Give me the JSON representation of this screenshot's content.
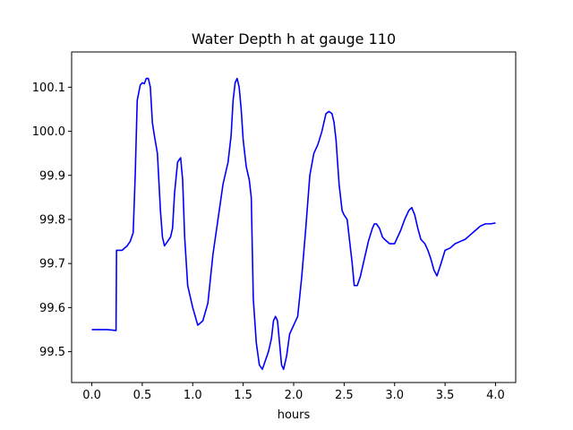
{
  "chart_data": {
    "type": "line",
    "title": "Water Depth h at gauge 110",
    "xlabel": "hours",
    "ylabel": "",
    "xlim": [
      -0.2,
      4.2
    ],
    "ylim": [
      99.43,
      100.18
    ],
    "xticks": [
      0.0,
      0.5,
      1.0,
      1.5,
      2.0,
      2.5,
      3.0,
      3.5,
      4.0
    ],
    "xtick_labels": [
      "0.0",
      "0.5",
      "1.0",
      "1.5",
      "2.0",
      "2.5",
      "3.0",
      "3.5",
      "4.0"
    ],
    "yticks": [
      99.5,
      99.6,
      99.7,
      99.8,
      99.9,
      100.0,
      100.1
    ],
    "ytick_labels": [
      "99.5",
      "99.6",
      "99.7",
      "99.8",
      "99.9",
      "100.0",
      "100.1"
    ],
    "grid": false,
    "series": [
      {
        "color": "#0000ff",
        "x": [
          0.0,
          0.05,
          0.1,
          0.15,
          0.2,
          0.24,
          0.245,
          0.3,
          0.35,
          0.38,
          0.41,
          0.43,
          0.45,
          0.48,
          0.5,
          0.52,
          0.54,
          0.56,
          0.58,
          0.6,
          0.62,
          0.65,
          0.68,
          0.7,
          0.72,
          0.75,
          0.78,
          0.8,
          0.82,
          0.85,
          0.88,
          0.9,
          0.92,
          0.95,
          0.98,
          1.0,
          1.05,
          1.1,
          1.15,
          1.2,
          1.25,
          1.3,
          1.35,
          1.38,
          1.4,
          1.42,
          1.44,
          1.46,
          1.48,
          1.5,
          1.53,
          1.56,
          1.58,
          1.6,
          1.63,
          1.66,
          1.69,
          1.72,
          1.75,
          1.78,
          1.8,
          1.82,
          1.84,
          1.86,
          1.88,
          1.9,
          1.93,
          1.96,
          2.0,
          2.04,
          2.08,
          2.12,
          2.16,
          2.2,
          2.24,
          2.28,
          2.3,
          2.32,
          2.35,
          2.38,
          2.4,
          2.42,
          2.45,
          2.48,
          2.5,
          2.53,
          2.56,
          2.58,
          2.6,
          2.63,
          2.66,
          2.7,
          2.74,
          2.78,
          2.8,
          2.82,
          2.85,
          2.88,
          2.9,
          2.95,
          3.0,
          3.03,
          3.06,
          3.1,
          3.14,
          3.17,
          3.2,
          3.23,
          3.26,
          3.3,
          3.33,
          3.36,
          3.39,
          3.42,
          3.46,
          3.5,
          3.55,
          3.6,
          3.65,
          3.7,
          3.75,
          3.8,
          3.85,
          3.9,
          3.95,
          4.0
        ],
        "y": [
          99.55,
          99.55,
          99.55,
          99.55,
          99.549,
          99.548,
          99.73,
          99.73,
          99.74,
          99.75,
          99.77,
          99.9,
          100.07,
          100.105,
          100.11,
          100.108,
          100.12,
          100.12,
          100.1,
          100.02,
          99.99,
          99.95,
          99.82,
          99.76,
          99.74,
          99.75,
          99.76,
          99.78,
          99.86,
          99.93,
          99.94,
          99.89,
          99.76,
          99.65,
          99.62,
          99.6,
          99.56,
          99.57,
          99.61,
          99.72,
          99.8,
          99.88,
          99.93,
          99.99,
          100.07,
          100.11,
          100.12,
          100.1,
          100.05,
          99.98,
          99.92,
          99.89,
          99.85,
          99.62,
          99.52,
          99.47,
          99.46,
          99.48,
          99.5,
          99.53,
          99.57,
          99.58,
          99.57,
          99.52,
          99.47,
          99.46,
          99.49,
          99.54,
          99.56,
          99.58,
          99.67,
          99.78,
          99.9,
          99.95,
          99.97,
          100.0,
          100.02,
          100.04,
          100.045,
          100.04,
          100.02,
          99.98,
          99.88,
          99.82,
          99.81,
          99.8,
          99.74,
          99.7,
          99.65,
          99.65,
          99.67,
          99.71,
          99.75,
          99.78,
          99.79,
          99.79,
          99.78,
          99.76,
          99.755,
          99.745,
          99.745,
          99.76,
          99.775,
          99.8,
          99.82,
          99.827,
          99.81,
          99.78,
          99.755,
          99.745,
          99.73,
          99.71,
          99.685,
          99.672,
          99.7,
          99.73,
          99.735,
          99.745,
          99.75,
          99.755,
          99.765,
          99.775,
          99.785,
          99.79,
          99.79,
          99.792
        ]
      }
    ]
  }
}
